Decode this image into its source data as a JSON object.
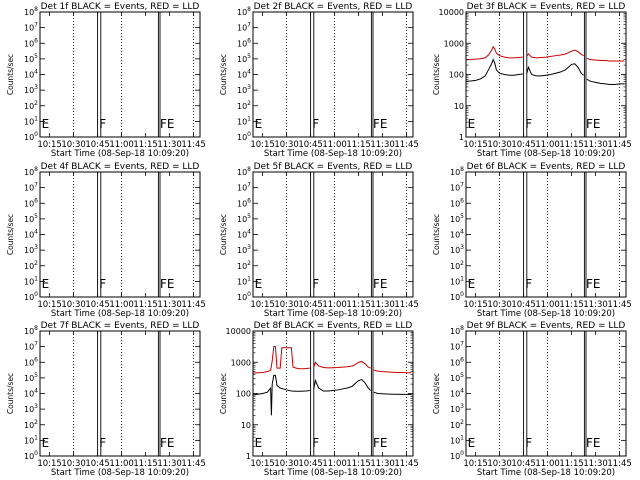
{
  "figure": {
    "x_tick_labels": [
      "10:15",
      "10:30",
      "10:45",
      "11:00",
      "11:15",
      "11:30",
      "11:45"
    ],
    "ylabel": "Counts/sec",
    "start_time_label": "Start Time (08-Sep-18 10:09:20)",
    "colors": {
      "events": "#000000",
      "lld": "#cc0000",
      "axes": "#000000"
    }
  },
  "chart_data": [
    {
      "type": "line",
      "title": "Det 1f BLACK = Events, RED = LLD",
      "xlabel": "Start Time (08-Sep-18 10:09:20)",
      "ylabel": "Counts/sec",
      "xlim": [
        "10:09",
        "11:49"
      ],
      "x_ticks": [
        "10:15",
        "10:30",
        "10:45",
        "11:00",
        "11:15",
        "11:30",
        "11:45"
      ],
      "yscale": "log",
      "ylim": [
        1,
        100000000
      ],
      "y_tick_exponents": [
        0,
        1,
        2,
        3,
        4,
        5,
        6,
        7,
        8
      ],
      "dotted_lines": [
        "10:30",
        "11:00",
        "11:45"
      ],
      "solid_lines": [
        "10:45",
        "10:47",
        "11:23",
        "11:24"
      ],
      "markers": [
        {
          "time": "10:10",
          "label": "E"
        },
        {
          "time": "10:46",
          "label": "F"
        },
        {
          "time": "11:24",
          "label": "FE"
        }
      ],
      "series": []
    },
    {
      "type": "line",
      "title": "Det 2f BLACK = Events, RED = LLD",
      "xlabel": "Start Time (08-Sep-18 10:09:20)",
      "ylabel": "Counts/sec",
      "xlim": [
        "10:09",
        "11:49"
      ],
      "x_ticks": [
        "10:15",
        "10:30",
        "10:45",
        "11:00",
        "11:15",
        "11:30",
        "11:45"
      ],
      "yscale": "log",
      "ylim": [
        1,
        100000000
      ],
      "y_tick_exponents": [
        0,
        1,
        2,
        3,
        4,
        5,
        6,
        7,
        8
      ],
      "dotted_lines": [
        "10:30",
        "11:00",
        "11:45"
      ],
      "solid_lines": [
        "10:45",
        "10:47",
        "11:23",
        "11:24"
      ],
      "markers": [
        {
          "time": "10:10",
          "label": "E"
        },
        {
          "time": "10:46",
          "label": "F"
        },
        {
          "time": "11:24",
          "label": "FE"
        }
      ],
      "series": []
    },
    {
      "type": "line",
      "title": "Det 3f BLACK = Events, RED = LLD",
      "xlabel": "Start Time (08-Sep-18 10:09:20)",
      "ylabel": "Counts/sec",
      "xlim": [
        "10:09",
        "11:49"
      ],
      "x_ticks": [
        "10:15",
        "10:30",
        "10:45",
        "11:00",
        "11:15",
        "11:30",
        "11:45"
      ],
      "yscale": "log",
      "ylim": [
        1,
        10000
      ],
      "y_tick_labels": [
        "1",
        "10",
        "100",
        "1000",
        "10000"
      ],
      "dotted_lines": [
        "10:30",
        "11:00",
        "11:45"
      ],
      "solid_lines": [
        "10:45",
        "10:47",
        "11:23",
        "11:24"
      ],
      "markers": [
        {
          "time": "10:10",
          "label": "E"
        },
        {
          "time": "10:46",
          "label": "F"
        },
        {
          "time": "11:24",
          "label": "FE"
        }
      ],
      "series": [
        {
          "name": "LLD",
          "color": "#cc0000",
          "segments": [
            {
              "x": [
                "10:09",
                "10:12",
                "10:15",
                "10:18",
                "10:21",
                "10:23",
                "10:25",
                "10:26",
                "10:27",
                "10:28",
                "10:30",
                "10:33",
                "10:36",
                "10:39",
                "10:42",
                "10:44.5"
              ],
              "y": [
                300,
                300,
                310,
                320,
                340,
                420,
                600,
                780,
                650,
                480,
                400,
                360,
                340,
                340,
                350,
                360
              ]
            },
            {
              "x": [
                "10:47",
                "10:48",
                "10:50",
                "10:53",
                "10:56",
                "10:59",
                "11:02",
                "11:05",
                "11:08",
                "11:11",
                "11:13",
                "11:15",
                "11:17",
                "11:19",
                "11:21",
                "11:22.5"
              ],
              "y": [
                380,
                460,
                360,
                340,
                350,
                360,
                380,
                400,
                420,
                450,
                500,
                560,
                600,
                540,
                440,
                400
              ]
            },
            {
              "x": [
                "11:24.5",
                "11:27",
                "11:30",
                "11:33",
                "11:36",
                "11:39",
                "11:42",
                "11:45",
                "11:48"
              ],
              "y": [
                330,
                300,
                290,
                280,
                280,
                270,
                270,
                270,
                270
              ]
            }
          ]
        },
        {
          "name": "Events",
          "color": "#000000",
          "segments": [
            {
              "x": [
                "10:09",
                "10:12",
                "10:15",
                "10:18",
                "10:21",
                "10:23",
                "10:25",
                "10:26",
                "10:27",
                "10:28",
                "10:30",
                "10:33",
                "10:36",
                "10:39",
                "10:42",
                "10:44.5"
              ],
              "y": [
                60,
                62,
                65,
                72,
                90,
                140,
                220,
                300,
                230,
                140,
                110,
                100,
                95,
                95,
                100,
                105
              ]
            },
            {
              "x": [
                "10:47",
                "10:48",
                "10:50",
                "10:53",
                "10:56",
                "10:59",
                "11:02",
                "11:05",
                "11:08",
                "11:11",
                "11:13",
                "11:15",
                "11:17",
                "11:19",
                "11:21",
                "11:22.5"
              ],
              "y": [
                110,
                170,
                100,
                90,
                90,
                95,
                100,
                110,
                120,
                140,
                170,
                210,
                220,
                170,
                110,
                95
              ]
            },
            {
              "x": [
                "11:24.5",
                "11:27",
                "11:30",
                "11:33",
                "11:36",
                "11:39",
                "11:42",
                "11:45",
                "11:48"
              ],
              "y": [
                70,
                60,
                56,
                52,
                50,
                48,
                48,
                50,
                50
              ]
            }
          ]
        }
      ]
    },
    {
      "type": "line",
      "title": "Det 4f BLACK = Events, RED = LLD",
      "xlabel": "Start Time (08-Sep-18 10:09:20)",
      "ylabel": "Counts/sec",
      "xlim": [
        "10:09",
        "11:49"
      ],
      "x_ticks": [
        "10:15",
        "10:30",
        "10:45",
        "11:00",
        "11:15",
        "11:30",
        "11:45"
      ],
      "yscale": "log",
      "ylim": [
        1,
        100000000
      ],
      "y_tick_exponents": [
        0,
        1,
        2,
        3,
        4,
        5,
        6,
        7,
        8
      ],
      "dotted_lines": [
        "10:30",
        "11:00",
        "11:45"
      ],
      "solid_lines": [
        "10:45",
        "10:47",
        "11:23",
        "11:24"
      ],
      "markers": [
        {
          "time": "10:10",
          "label": "E"
        },
        {
          "time": "10:46",
          "label": "F"
        },
        {
          "time": "11:24",
          "label": "FE"
        }
      ],
      "series": []
    },
    {
      "type": "line",
      "title": "Det 5f BLACK = Events, RED = LLD",
      "xlabel": "Start Time (08-Sep-18 10:09:20)",
      "ylabel": "Counts/sec",
      "xlim": [
        "10:09",
        "11:49"
      ],
      "x_ticks": [
        "10:15",
        "10:30",
        "10:45",
        "11:00",
        "11:15",
        "11:30",
        "11:45"
      ],
      "yscale": "log",
      "ylim": [
        1,
        100000000
      ],
      "y_tick_exponents": [
        0,
        1,
        2,
        3,
        4,
        5,
        6,
        7,
        8
      ],
      "dotted_lines": [
        "10:30",
        "11:00",
        "11:45"
      ],
      "solid_lines": [
        "10:45",
        "10:47",
        "11:23",
        "11:24"
      ],
      "markers": [
        {
          "time": "10:10",
          "label": "E"
        },
        {
          "time": "10:46",
          "label": "F"
        },
        {
          "time": "11:24",
          "label": "FE"
        }
      ],
      "series": []
    },
    {
      "type": "line",
      "title": "Det 6f BLACK = Events, RED = LLD",
      "xlabel": "Start Time (08-Sep-18 10:09:20)",
      "ylabel": "Counts/sec",
      "xlim": [
        "10:09",
        "11:49"
      ],
      "x_ticks": [
        "10:15",
        "10:30",
        "10:45",
        "11:00",
        "11:15",
        "11:30",
        "11:45"
      ],
      "yscale": "log",
      "ylim": [
        1,
        100000000
      ],
      "y_tick_exponents": [
        0,
        1,
        2,
        3,
        4,
        5,
        6,
        7,
        8
      ],
      "dotted_lines": [
        "10:30",
        "11:00",
        "11:45"
      ],
      "solid_lines": [
        "10:45",
        "10:47",
        "11:23",
        "11:24"
      ],
      "markers": [
        {
          "time": "10:10",
          "label": "E"
        },
        {
          "time": "10:46",
          "label": "F"
        },
        {
          "time": "11:24",
          "label": "FE"
        }
      ],
      "series": []
    },
    {
      "type": "line",
      "title": "Det 7f BLACK = Events, RED = LLD",
      "xlabel": "Start Time (08-Sep-18 10:09:20)",
      "ylabel": "Counts/sec",
      "xlim": [
        "10:09",
        "11:49"
      ],
      "x_ticks": [
        "10:15",
        "10:30",
        "10:45",
        "11:00",
        "11:15",
        "11:30",
        "11:45"
      ],
      "yscale": "log",
      "ylim": [
        1,
        100000000
      ],
      "y_tick_exponents": [
        0,
        1,
        2,
        3,
        4,
        5,
        6,
        7,
        8
      ],
      "dotted_lines": [
        "10:30",
        "11:00",
        "11:45"
      ],
      "solid_lines": [
        "10:45",
        "10:47",
        "11:23",
        "11:24"
      ],
      "markers": [
        {
          "time": "10:10",
          "label": "E"
        },
        {
          "time": "10:46",
          "label": "F"
        },
        {
          "time": "11:24",
          "label": "FE"
        }
      ],
      "series": []
    },
    {
      "type": "line",
      "title": "Det 8f BLACK = Events, RED = LLD",
      "xlabel": "Start Time (08-Sep-18 10:09:20)",
      "ylabel": "Counts/sec",
      "xlim": [
        "10:09",
        "11:49"
      ],
      "x_ticks": [
        "10:15",
        "10:30",
        "10:45",
        "11:00",
        "11:15",
        "11:30",
        "11:45"
      ],
      "yscale": "log",
      "ylim": [
        1,
        10000
      ],
      "y_tick_labels": [
        "1",
        "10",
        "100",
        "1000",
        "10000"
      ],
      "dotted_lines": [
        "10:30",
        "11:00",
        "11:45"
      ],
      "solid_lines": [
        "10:45",
        "10:47",
        "11:23",
        "11:24"
      ],
      "markers": [
        {
          "time": "10:10",
          "label": "E"
        },
        {
          "time": "10:46",
          "label": "F"
        },
        {
          "time": "11:24",
          "label": "FE"
        }
      ],
      "series": [
        {
          "name": "LLD",
          "color": "#cc0000",
          "segments": [
            {
              "x": [
                "10:09",
                "10:12",
                "10:15",
                "10:18",
                "10:20",
                "10:21",
                "10:22",
                "10:23",
                "10:24",
                "10:26",
                "10:27",
                "10:28",
                "10:30",
                "10:32",
                "10:33",
                "10:34",
                "10:36",
                "10:38",
                "10:40",
                "10:42",
                "10:44.5"
              ],
              "y": [
                450,
                460,
                470,
                500,
                550,
                1100,
                3200,
                3200,
                650,
                650,
                2900,
                2900,
                2900,
                2900,
                2900,
                700,
                650,
                620,
                620,
                630,
                650
              ]
            },
            {
              "x": [
                "10:47",
                "10:48",
                "10:50",
                "10:53",
                "10:56",
                "10:59",
                "11:02",
                "11:05",
                "11:08",
                "11:11",
                "11:13",
                "11:15",
                "11:17",
                "11:19",
                "11:21",
                "11:22.5"
              ],
              "y": [
                700,
                1000,
                760,
                680,
                660,
                670,
                680,
                700,
                720,
                760,
                850,
                1000,
                1050,
                900,
                700,
                650
              ]
            },
            {
              "x": [
                "11:24.5",
                "11:27",
                "11:30",
                "11:33",
                "11:36",
                "11:39",
                "11:42",
                "11:45",
                "11:48"
              ],
              "y": [
                560,
                520,
                500,
                490,
                480,
                470,
                470,
                460,
                460
              ]
            }
          ]
        },
        {
          "name": "Events",
          "color": "#000000",
          "segments": [
            {
              "x": [
                "10:09",
                "10:12",
                "10:15",
                "10:18",
                "10:20",
                "10:20.5",
                "10:21",
                "10:22",
                "10:23",
                "10:24",
                "10:26",
                "10:28",
                "10:30",
                "10:33",
                "10:36",
                "10:39",
                "10:42",
                "10:44.5"
              ],
              "y": [
                90,
                95,
                100,
                110,
                150,
                20,
                200,
                380,
                380,
                180,
                150,
                140,
                130,
                120,
                118,
                118,
                120,
                125
              ]
            },
            {
              "x": [
                "10:47",
                "10:48",
                "10:50",
                "10:53",
                "10:56",
                "10:59",
                "11:02",
                "11:05",
                "11:08",
                "11:11",
                "11:13",
                "11:15",
                "11:17",
                "11:19",
                "11:21",
                "11:22.5"
              ],
              "y": [
                140,
                260,
                150,
                120,
                120,
                125,
                130,
                140,
                150,
                170,
                210,
                260,
                280,
                220,
                150,
                125
              ]
            },
            {
              "x": [
                "11:24.5",
                "11:27",
                "11:30",
                "11:33",
                "11:36",
                "11:39",
                "11:42",
                "11:45",
                "11:48"
              ],
              "y": [
                110,
                100,
                98,
                96,
                95,
                95,
                94,
                94,
                94
              ]
            }
          ]
        }
      ]
    },
    {
      "type": "line",
      "title": "Det 9f BLACK = Events, RED = LLD",
      "xlabel": "Start Time (08-Sep-18 10:09:20)",
      "ylabel": "Counts/sec",
      "xlim": [
        "10:09",
        "11:49"
      ],
      "x_ticks": [
        "10:15",
        "10:30",
        "10:45",
        "11:00",
        "11:15",
        "11:30",
        "11:45"
      ],
      "yscale": "log",
      "ylim": [
        1,
        100000000
      ],
      "y_tick_exponents": [
        0,
        1,
        2,
        3,
        4,
        5,
        6,
        7,
        8
      ],
      "dotted_lines": [
        "10:30",
        "11:00",
        "11:45"
      ],
      "solid_lines": [
        "10:45",
        "10:47",
        "11:23",
        "11:24"
      ],
      "markers": [
        {
          "time": "10:10",
          "label": "E"
        },
        {
          "time": "10:46",
          "label": "F"
        },
        {
          "time": "11:24",
          "label": "FE"
        }
      ],
      "series": []
    }
  ]
}
